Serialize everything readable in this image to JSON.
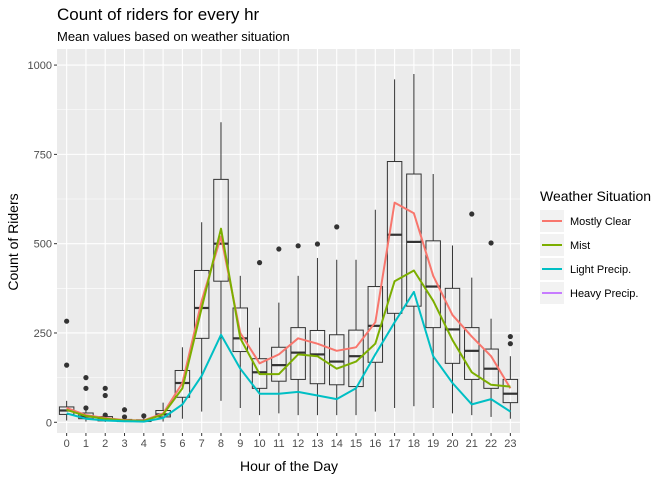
{
  "chart_data": {
    "type": "boxplot+line",
    "title": "Count of riders for every hr",
    "subtitle": "Mean values based on weather situation",
    "xlabel": "Hour of the Day",
    "ylabel": "Count of Riders",
    "ylim": [
      -30,
      1045
    ],
    "y_ticks": [
      0,
      250,
      500,
      750,
      1000
    ],
    "x": [
      0,
      1,
      2,
      3,
      4,
      5,
      6,
      7,
      8,
      9,
      10,
      11,
      12,
      13,
      14,
      15,
      16,
      17,
      18,
      19,
      20,
      21,
      22,
      23
    ],
    "grid": true,
    "legend": {
      "title": "Weather Situation",
      "placement": "right",
      "entries": [
        {
          "label": "Mostly Clear",
          "color": "#F8766D"
        },
        {
          "label": "Mist",
          "color": "#7CAE00"
        },
        {
          "label": "Light Precip.",
          "color": "#00BFC4"
        },
        {
          "label": "Heavy Precip.",
          "color": "#C77CFF"
        }
      ]
    },
    "boxes": [
      {
        "x": 0,
        "lw": 5,
        "q1": 22,
        "med": 33,
        "q3": 43,
        "uw": 60,
        "out": [
          160,
          283
        ]
      },
      {
        "x": 1,
        "lw": 2,
        "q1": 10,
        "med": 16,
        "q3": 26,
        "uw": 35,
        "out": [
          40,
          95,
          125
        ]
      },
      {
        "x": 2,
        "lw": 1,
        "q1": 4,
        "med": 9,
        "q3": 16,
        "uw": 25,
        "out": [
          20,
          75,
          95
        ]
      },
      {
        "x": 3,
        "lw": 1,
        "q1": 2,
        "med": 5,
        "q3": 8,
        "uw": 12,
        "out": [
          15,
          35
        ]
      },
      {
        "x": 4,
        "lw": 1,
        "q1": 2,
        "med": 4,
        "q3": 7,
        "uw": 12,
        "out": [
          18
        ]
      },
      {
        "x": 5,
        "lw": 2,
        "q1": 15,
        "med": 22,
        "q3": 33,
        "uw": 55,
        "out": []
      },
      {
        "x": 6,
        "lw": 10,
        "q1": 70,
        "med": 110,
        "q3": 145,
        "uw": 210,
        "out": []
      },
      {
        "x": 7,
        "lw": 30,
        "q1": 235,
        "med": 320,
        "q3": 425,
        "uw": 560,
        "out": []
      },
      {
        "x": 8,
        "lw": 60,
        "q1": 395,
        "med": 500,
        "q3": 680,
        "uw": 840,
        "out": []
      },
      {
        "x": 9,
        "lw": 40,
        "q1": 198,
        "med": 235,
        "q3": 320,
        "uw": 410,
        "out": []
      },
      {
        "x": 10,
        "lw": 20,
        "q1": 95,
        "med": 140,
        "q3": 178,
        "uw": 265,
        "out": [
          447
        ]
      },
      {
        "x": 11,
        "lw": 25,
        "q1": 115,
        "med": 160,
        "q3": 210,
        "uw": 335,
        "out": [
          485
        ]
      },
      {
        "x": 12,
        "lw": 20,
        "q1": 120,
        "med": 195,
        "q3": 265,
        "uw": 410,
        "out": [
          494
        ]
      },
      {
        "x": 13,
        "lw": 20,
        "q1": 108,
        "med": 190,
        "q3": 257,
        "uw": 460,
        "out": [
          499
        ]
      },
      {
        "x": 14,
        "lw": 20,
        "q1": 105,
        "med": 170,
        "q3": 245,
        "uw": 455,
        "out": [
          547
        ]
      },
      {
        "x": 15,
        "lw": 20,
        "q1": 100,
        "med": 185,
        "q3": 258,
        "uw": 455,
        "out": []
      },
      {
        "x": 16,
        "lw": 30,
        "q1": 168,
        "med": 270,
        "q3": 380,
        "uw": 595,
        "out": []
      },
      {
        "x": 17,
        "lw": 40,
        "q1": 305,
        "med": 525,
        "q3": 730,
        "uw": 960,
        "out": []
      },
      {
        "x": 18,
        "lw": 45,
        "q1": 325,
        "med": 505,
        "q3": 695,
        "uw": 975,
        "out": []
      },
      {
        "x": 19,
        "lw": 40,
        "q1": 265,
        "med": 380,
        "q3": 508,
        "uw": 695,
        "out": []
      },
      {
        "x": 20,
        "lw": 25,
        "q1": 165,
        "med": 260,
        "q3": 375,
        "uw": 495,
        "out": []
      },
      {
        "x": 21,
        "lw": 20,
        "q1": 120,
        "med": 200,
        "q3": 265,
        "uw": 405,
        "out": [
          583
        ]
      },
      {
        "x": 22,
        "lw": 15,
        "q1": 95,
        "med": 150,
        "q3": 205,
        "uw": 290,
        "out": [
          502
        ]
      },
      {
        "x": 23,
        "lw": 10,
        "q1": 55,
        "med": 80,
        "q3": 120,
        "uw": 185,
        "out": [
          220,
          240
        ]
      }
    ],
    "series": [
      {
        "name": "Mostly Clear",
        "color": "#F8766D",
        "values": [
          40,
          20,
          12,
          6,
          5,
          25,
          110,
          340,
          520,
          250,
          165,
          190,
          235,
          220,
          200,
          210,
          280,
          615,
          585,
          410,
          300,
          240,
          185,
          95
        ]
      },
      {
        "name": "Mist",
        "color": "#7CAE00",
        "values": [
          35,
          18,
          10,
          5,
          4,
          22,
          95,
          320,
          542,
          235,
          135,
          135,
          190,
          185,
          150,
          170,
          220,
          395,
          425,
          340,
          230,
          140,
          105,
          100
        ]
      },
      {
        "name": "Light Precip.",
        "color": "#00BFC4",
        "values": [
          25,
          10,
          5,
          3,
          2,
          12,
          50,
          130,
          245,
          150,
          80,
          80,
          85,
          75,
          65,
          95,
          190,
          280,
          365,
          185,
          110,
          50,
          65,
          30
        ]
      }
    ]
  }
}
